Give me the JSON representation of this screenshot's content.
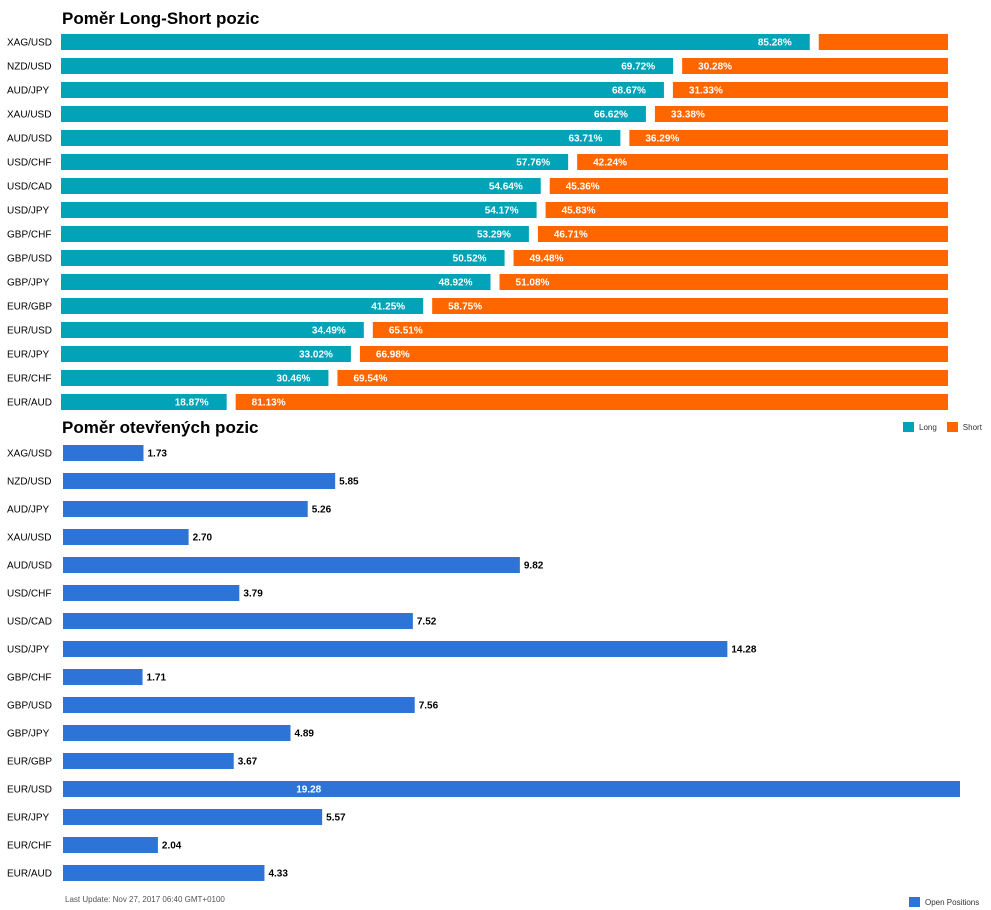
{
  "chart_data": [
    {
      "type": "bar",
      "orientation": "horizontal",
      "stacked": true,
      "title": "Poměr Long-Short pozic",
      "categories": [
        "XAG/USD",
        "NZD/USD",
        "AUD/JPY",
        "XAU/USD",
        "AUD/USD",
        "USD/CHF",
        "USD/CAD",
        "USD/JPY",
        "GBP/CHF",
        "GBP/USD",
        "GBP/JPY",
        "EUR/GBP",
        "EUR/USD",
        "EUR/JPY",
        "EUR/CHF",
        "EUR/AUD"
      ],
      "series": [
        {
          "name": "Long",
          "color": "#00a3b7",
          "values": [
            85.28,
            69.72,
            68.67,
            66.62,
            63.71,
            57.76,
            54.64,
            54.17,
            53.29,
            50.52,
            48.92,
            41.25,
            34.49,
            33.02,
            30.46,
            18.87
          ]
        },
        {
          "name": "Short",
          "color": "#ff6600",
          "values": [
            14.72,
            30.28,
            31.33,
            33.38,
            36.29,
            42.24,
            45.36,
            45.83,
            46.71,
            49.48,
            51.08,
            58.75,
            65.51,
            66.98,
            69.54,
            81.13
          ]
        }
      ],
      "data_labels": {
        "long": [
          "85.28%",
          "69.72%",
          "68.67%",
          "66.62%",
          "63.71%",
          "57.76%",
          "54.64%",
          "54.17%",
          "53.29%",
          "50.52%",
          "48.92%",
          "41.25%",
          "34.49%",
          "33.02%",
          "30.46%",
          "18.87%"
        ],
        "short": [
          "",
          "30.28%",
          "31.33%",
          "33.38%",
          "36.29%",
          "42.24%",
          "45.36%",
          "45.83%",
          "46.71%",
          "49.48%",
          "51.08%",
          "58.75%",
          "65.51%",
          "66.98%",
          "69.54%",
          "81.13%"
        ]
      },
      "xlim": [
        0,
        100
      ],
      "legend_position": "bottom-right"
    },
    {
      "type": "bar",
      "orientation": "horizontal",
      "title": "Poměr otevřených pozic",
      "categories": [
        "XAG/USD",
        "NZD/USD",
        "AUD/JPY",
        "XAU/USD",
        "AUD/USD",
        "USD/CHF",
        "USD/CAD",
        "USD/JPY",
        "GBP/CHF",
        "GBP/USD",
        "GBP/JPY",
        "EUR/GBP",
        "EUR/USD",
        "EUR/JPY",
        "EUR/CHF",
        "EUR/AUD"
      ],
      "series": [
        {
          "name": "Open Positions",
          "color": "#2e74d6",
          "values": [
            1.73,
            5.85,
            5.26,
            2.7,
            9.82,
            3.79,
            7.52,
            14.28,
            1.71,
            7.56,
            4.89,
            3.67,
            19.28,
            5.57,
            2.04,
            4.33
          ]
        }
      ],
      "data_labels": [
        "1.73",
        "5.85",
        "5.26",
        "2.70",
        "9.82",
        "3.79",
        "7.52",
        "14.28",
        "1.71",
        "7.56",
        "4.89",
        "3.67",
        "19.28",
        "5.57",
        "2.04",
        "4.33"
      ],
      "inside_label_index": 12,
      "xlim": [
        0,
        19.28
      ],
      "legend_position": "bottom-right"
    }
  ],
  "legend1": {
    "long": "Long",
    "short": "Short",
    "long_color": "#00a3b7",
    "short_color": "#ff6600"
  },
  "legend2": {
    "open": "Open Positions",
    "open_color": "#2e74d6"
  },
  "footer": {
    "last_update": "Last Update: Nov 27, 2017 06:40 GMT+0100"
  }
}
